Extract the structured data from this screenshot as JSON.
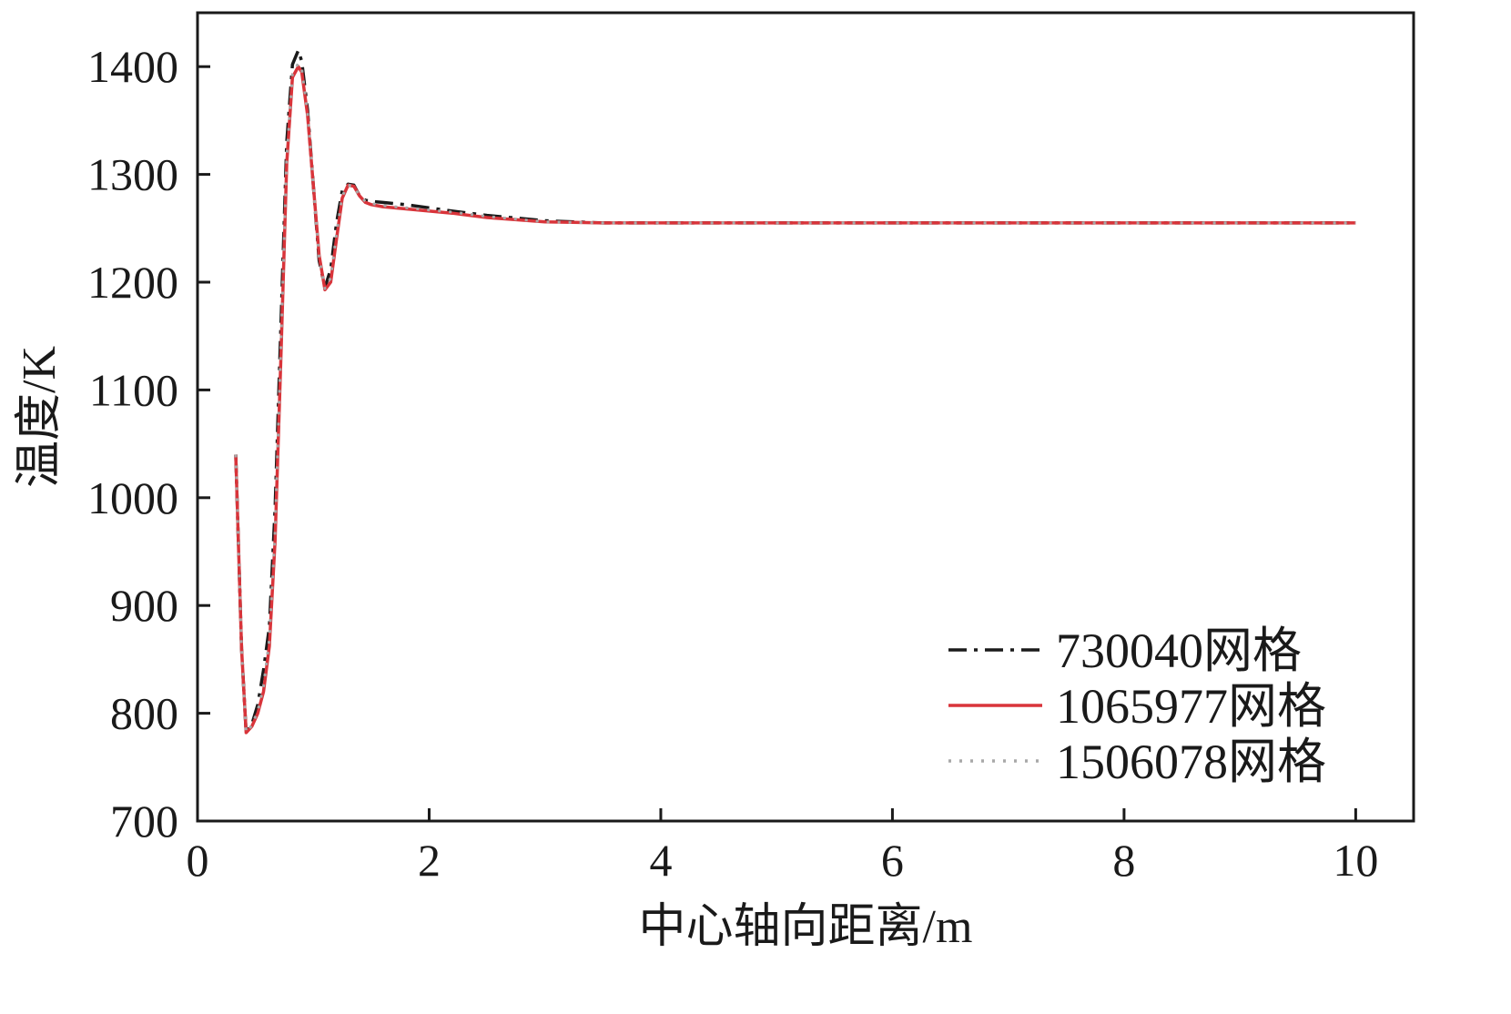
{
  "chart_data": {
    "type": "line",
    "title": "",
    "xlabel": "中心轴向距离/m",
    "ylabel": "温度/K",
    "xlim": [
      0,
      10.5
    ],
    "ylim": [
      700,
      1450
    ],
    "xticks": [
      0,
      2,
      4,
      6,
      8,
      10
    ],
    "xtick_labels": [
      "0",
      "2",
      "4",
      "6",
      "8",
      "10"
    ],
    "yticks": [
      700,
      800,
      900,
      1000,
      1100,
      1200,
      1300,
      1400
    ],
    "ytick_labels": [
      "700",
      "800",
      "900",
      "1000",
      "1100",
      "1200",
      "1300",
      "1400"
    ],
    "grid": false,
    "legend_position": "bottom-right",
    "series": [
      {
        "name": "730040网格",
        "color": "#1a1a1a",
        "style": "dashdot",
        "x": [
          0.33,
          0.38,
          0.42,
          0.47,
          0.52,
          0.57,
          0.62,
          0.67,
          0.72,
          0.77,
          0.82,
          0.87,
          0.9,
          0.95,
          1.0,
          1.05,
          1.1,
          1.15,
          1.2,
          1.25,
          1.3,
          1.35,
          1.4,
          1.45,
          1.5,
          1.6,
          1.8,
          2.0,
          2.2,
          2.5,
          3.0,
          3.5,
          4.0,
          5.0,
          6.0,
          7.0,
          8.0,
          9.0,
          10.0
        ],
        "y": [
          1040,
          860,
          782,
          790,
          808,
          840,
          880,
          990,
          1160,
          1330,
          1402,
          1415,
          1405,
          1360,
          1290,
          1220,
          1195,
          1212,
          1255,
          1285,
          1291,
          1290,
          1280,
          1276,
          1275,
          1274,
          1272,
          1269,
          1266,
          1262,
          1257,
          1255,
          1255,
          1255,
          1255,
          1255,
          1255,
          1255,
          1255
        ]
      },
      {
        "name": "1065977网格",
        "color": "#d9343a",
        "style": "solid",
        "x": [
          0.33,
          0.38,
          0.42,
          0.47,
          0.52,
          0.57,
          0.62,
          0.67,
          0.72,
          0.77,
          0.82,
          0.87,
          0.9,
          0.95,
          1.0,
          1.05,
          1.1,
          1.15,
          1.2,
          1.25,
          1.3,
          1.35,
          1.4,
          1.45,
          1.5,
          1.6,
          1.8,
          2.0,
          2.2,
          2.5,
          3.0,
          3.5,
          4.0,
          5.0,
          6.0,
          7.0,
          8.0,
          9.0,
          10.0
        ],
        "y": [
          1040,
          860,
          782,
          788,
          800,
          820,
          862,
          960,
          1130,
          1310,
          1390,
          1400,
          1395,
          1355,
          1290,
          1225,
          1193,
          1200,
          1240,
          1278,
          1290,
          1289,
          1280,
          1274,
          1272,
          1270,
          1268,
          1266,
          1264,
          1260,
          1256,
          1255,
          1255,
          1255,
          1255,
          1255,
          1255,
          1255,
          1255
        ]
      },
      {
        "name": "1506078网格",
        "color": "#a8a8a8",
        "style": "dotted",
        "x": [
          0.33,
          0.38,
          0.42,
          0.47,
          0.52,
          0.57,
          0.62,
          0.67,
          0.72,
          0.77,
          0.82,
          0.87,
          0.9,
          0.95,
          1.0,
          1.05,
          1.1,
          1.15,
          1.2,
          1.25,
          1.3,
          1.35,
          1.4,
          1.45,
          1.5,
          1.6,
          1.8,
          2.0,
          2.2,
          2.5,
          3.0,
          3.5,
          4.0,
          5.0,
          6.0,
          7.0,
          8.0,
          9.0,
          10.0
        ],
        "y": [
          1040,
          860,
          782,
          789,
          802,
          825,
          868,
          968,
          1140,
          1315,
          1393,
          1403,
          1398,
          1357,
          1290,
          1223,
          1194,
          1204,
          1245,
          1280,
          1290,
          1289,
          1280,
          1275,
          1273,
          1271,
          1269,
          1267,
          1265,
          1261,
          1256,
          1255,
          1255,
          1255,
          1255,
          1255,
          1255,
          1255,
          1255
        ]
      }
    ]
  }
}
